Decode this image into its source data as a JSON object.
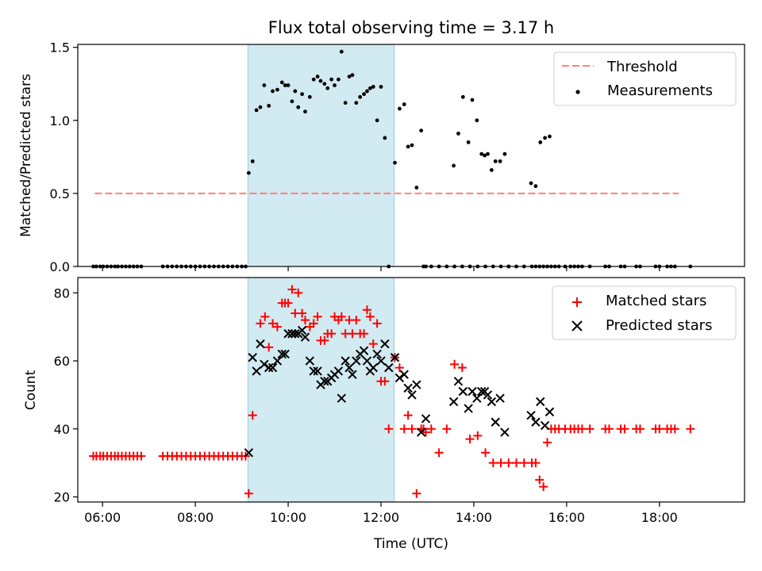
{
  "chart_data": [
    {
      "type": "scatter",
      "title": "Flux total observing time = 3.17 h",
      "xlabel": "",
      "ylabel": "Matched/Predicted stars",
      "xlim": [
        "05:28",
        "19:50"
      ],
      "ylim": [
        0,
        1.52
      ],
      "yticks": [
        "0.0",
        "0.5",
        "1.0",
        "1.5"
      ],
      "shaded_interval": {
        "x": [
          "09:08",
          "12:17"
        ],
        "color": "#add8e6"
      },
      "legend": {
        "placement": "top-right",
        "entries": [
          {
            "label": "Threshold",
            "style": "dashed-line",
            "color": "#ff7f7f"
          },
          {
            "label": "Measurements",
            "style": "dot",
            "color": "#000000"
          }
        ]
      },
      "threshold": {
        "name": "Threshold",
        "y": 0.5,
        "x": [
          "05:50",
          "18:25"
        ],
        "color": "#ff7f7f"
      },
      "series": [
        {
          "name": "Measurements",
          "color": "#000000",
          "x": [
            "05:48",
            "05:52",
            "05:57",
            "06:01",
            "06:06",
            "06:11",
            "06:16",
            "06:20",
            "06:25",
            "06:30",
            "06:35",
            "06:40",
            "06:45",
            "06:50",
            "07:18",
            "07:24",
            "07:30",
            "07:36",
            "07:42",
            "07:48",
            "07:54",
            "08:00",
            "08:06",
            "08:12",
            "08:18",
            "08:24",
            "08:30",
            "08:36",
            "08:42",
            "08:48",
            "08:54",
            "09:00",
            "09:05",
            "09:09",
            "09:14",
            "09:19",
            "09:24",
            "09:29",
            "09:35",
            "09:40",
            "09:46",
            "09:52",
            "09:56",
            "10:00",
            "10:05",
            "10:09",
            "10:13",
            "10:18",
            "10:22",
            "10:28",
            "10:33",
            "10:38",
            "10:42",
            "10:47",
            "10:51",
            "10:56",
            "11:00",
            "11:05",
            "11:09",
            "11:14",
            "11:19",
            "11:23",
            "11:28",
            "11:33",
            "11:38",
            "11:42",
            "11:46",
            "11:50",
            "11:55",
            "12:00",
            "12:05",
            "12:10",
            "12:18",
            "12:24",
            "12:30",
            "12:35",
            "12:40",
            "12:46",
            "12:52",
            "12:55",
            "12:58",
            "13:05",
            "13:15",
            "13:25",
            "13:35",
            "13:45",
            "13:55",
            "14:05",
            "14:15",
            "14:25",
            "14:35",
            "14:45",
            "14:55",
            "15:05",
            "15:15",
            "15:20",
            "15:25",
            "15:30",
            "15:35",
            "15:40",
            "15:45",
            "15:50",
            "15:58",
            "16:05",
            "16:10",
            "16:15",
            "16:20",
            "16:30",
            "16:50",
            "16:55",
            "17:10",
            "17:15",
            "17:30",
            "17:35",
            "17:55",
            "18:00",
            "18:10",
            "18:15",
            "18:20",
            "18:40",
            "13:34",
            "13:40",
            "13:46",
            "13:53",
            "13:58",
            "14:04",
            "14:10",
            "14:14",
            "14:18",
            "14:23",
            "14:28",
            "14:34",
            "14:40",
            "14:45",
            "15:14",
            "15:20",
            "15:26",
            "15:32",
            "15:38"
          ],
          "y": [
            0,
            0,
            0,
            0,
            0,
            0,
            0,
            0,
            0,
            0,
            0,
            0,
            0,
            0,
            0,
            0,
            0,
            0,
            0,
            0,
            0,
            0,
            0,
            0,
            0,
            0,
            0,
            0,
            0,
            0,
            0,
            0,
            0,
            0.64,
            0.72,
            1.07,
            1.09,
            1.24,
            1.1,
            1.2,
            1.21,
            1.26,
            1.24,
            1.24,
            1.13,
            1.2,
            1.09,
            1.18,
            1.06,
            1.16,
            1.28,
            1.3,
            1.27,
            1.25,
            1.22,
            1.28,
            1.24,
            1.28,
            1.47,
            1.12,
            1.3,
            1.31,
            1.12,
            1.16,
            1.18,
            1.2,
            1.22,
            1.23,
            1.0,
            1.23,
            0.88,
            0.0,
            0.71,
            1.08,
            1.11,
            0.82,
            0.83,
            0.54,
            0.93,
            0,
            0,
            0,
            0,
            0,
            0,
            0,
            0,
            0,
            0,
            0,
            0,
            0,
            0,
            0,
            0,
            0,
            0,
            0,
            0,
            0,
            0,
            0,
            0,
            0,
            0,
            0,
            0,
            0,
            0,
            0,
            0,
            0,
            0,
            0,
            0,
            0,
            0,
            0,
            0,
            0,
            0.69,
            0.91,
            1.16,
            0.85,
            1.14,
            1.0,
            0.77,
            0.76,
            0.77,
            0.66,
            0.72,
            0.72,
            0.77,
            0,
            0.57,
            0.55,
            0.85,
            0.88,
            0.89
          ]
        }
      ]
    },
    {
      "type": "scatter",
      "title": "",
      "xlabel": "Time (UTC)",
      "ylabel": "Count",
      "xlim": [
        "05:28",
        "19:50"
      ],
      "ylim": [
        18.5,
        84.5
      ],
      "yticks": [
        "20",
        "40",
        "60",
        "80"
      ],
      "xticks": [
        "06:00",
        "08:00",
        "10:00",
        "12:00",
        "14:00",
        "16:00",
        "18:00"
      ],
      "shaded_interval": {
        "x": [
          "09:08",
          "12:17"
        ],
        "color": "#add8e6"
      },
      "legend": {
        "placement": "top-right",
        "entries": [
          {
            "label": "Matched stars",
            "style": "plus",
            "color": "#ff0000"
          },
          {
            "label": "Predicted stars",
            "style": "x",
            "color": "#000000"
          }
        ]
      },
      "series": [
        {
          "name": "Matched stars",
          "marker": "plus",
          "color": "#ff0000",
          "x": [
            "05:48",
            "05:52",
            "05:57",
            "06:01",
            "06:06",
            "06:11",
            "06:16",
            "06:20",
            "06:25",
            "06:30",
            "06:35",
            "06:40",
            "06:45",
            "06:50",
            "07:18",
            "07:24",
            "07:30",
            "07:36",
            "07:42",
            "07:48",
            "07:54",
            "08:00",
            "08:06",
            "08:12",
            "08:18",
            "08:24",
            "08:30",
            "08:36",
            "08:42",
            "08:48",
            "08:54",
            "09:00",
            "09:05",
            "09:09",
            "09:14",
            "09:24",
            "09:30",
            "09:35",
            "09:40",
            "09:46",
            "09:52",
            "09:56",
            "10:00",
            "10:05",
            "10:09",
            "10:13",
            "10:18",
            "10:22",
            "10:28",
            "10:33",
            "10:38",
            "10:42",
            "10:47",
            "10:51",
            "10:56",
            "11:00",
            "11:05",
            "11:09",
            "11:14",
            "11:19",
            "11:23",
            "11:28",
            "11:33",
            "11:38",
            "11:42",
            "11:46",
            "11:50",
            "11:55",
            "12:00",
            "12:05",
            "12:10",
            "12:18",
            "12:24",
            "12:30",
            "12:35",
            "12:40",
            "12:46",
            "12:52",
            "12:55",
            "12:58",
            "13:05",
            "13:15",
            "13:25",
            "13:35",
            "13:45",
            "13:55",
            "14:05",
            "14:15",
            "14:25",
            "14:35",
            "14:45",
            "14:55",
            "15:05",
            "15:15",
            "15:20",
            "15:25",
            "15:30",
            "15:35",
            "15:40",
            "15:45",
            "15:50",
            "15:58",
            "16:05",
            "16:10",
            "16:15",
            "16:20",
            "16:30",
            "16:50",
            "16:55",
            "17:10",
            "17:15",
            "17:30",
            "17:35",
            "17:55",
            "18:00",
            "18:10",
            "18:15",
            "18:20",
            "18:40"
          ],
          "y": [
            32,
            32,
            32,
            32,
            32,
            32,
            32,
            32,
            32,
            32,
            32,
            32,
            32,
            32,
            32,
            32,
            32,
            32,
            32,
            32,
            32,
            32,
            32,
            32,
            32,
            32,
            32,
            32,
            32,
            32,
            32,
            32,
            32,
            21,
            44,
            71,
            73,
            64,
            71,
            70,
            77,
            77,
            77,
            81,
            74,
            80,
            74,
            72,
            70,
            71,
            73,
            66,
            66,
            68,
            68,
            73,
            72,
            73,
            68,
            72,
            68,
            72,
            68,
            68,
            75,
            73,
            65,
            71,
            54,
            54,
            40,
            61,
            58,
            40,
            44,
            40,
            21,
            40,
            40,
            39,
            40,
            33,
            40,
            59,
            58,
            37,
            38,
            33,
            30,
            30,
            30,
            30,
            30,
            30,
            30,
            25,
            23,
            36,
            40,
            40,
            40,
            40,
            40,
            40,
            40,
            40,
            40,
            40,
            40,
            40,
            40,
            40,
            40,
            40,
            40,
            40,
            40,
            40,
            40
          ]
        },
        {
          "name": "Predicted stars",
          "marker": "x",
          "color": "#000000",
          "x": [
            "09:09",
            "09:14",
            "09:19",
            "09:24",
            "09:29",
            "09:35",
            "09:40",
            "09:46",
            "09:52",
            "09:56",
            "10:00",
            "10:05",
            "10:09",
            "10:13",
            "10:18",
            "10:22",
            "10:28",
            "10:33",
            "10:38",
            "10:42",
            "10:47",
            "10:51",
            "10:56",
            "11:00",
            "11:05",
            "11:09",
            "11:14",
            "11:19",
            "11:23",
            "11:28",
            "11:33",
            "11:38",
            "11:42",
            "11:46",
            "11:50",
            "11:55",
            "12:00",
            "12:05",
            "12:10",
            "12:18",
            "12:24",
            "12:30",
            "12:35",
            "12:40",
            "12:46",
            "12:52",
            "12:58",
            "13:34",
            "13:40",
            "13:46",
            "13:53",
            "13:58",
            "14:04",
            "14:10",
            "14:14",
            "14:18",
            "14:23",
            "14:28",
            "14:34",
            "14:40",
            "15:14",
            "15:20",
            "15:26",
            "15:32",
            "15:38"
          ],
          "y": [
            33,
            61,
            57,
            65,
            59,
            58,
            58,
            60,
            62,
            62,
            68,
            68,
            68,
            68,
            69,
            67,
            60,
            57,
            57,
            53,
            54,
            54,
            55,
            56,
            57,
            49,
            60,
            58,
            56,
            60,
            62,
            63,
            60,
            57,
            58,
            62,
            60,
            65,
            58,
            61,
            55,
            56,
            52,
            50,
            53,
            39,
            43,
            48,
            54,
            51,
            46,
            51,
            49,
            51,
            51,
            50,
            48,
            42,
            49,
            39,
            44,
            42,
            48,
            41,
            45
          ]
        }
      ]
    }
  ]
}
